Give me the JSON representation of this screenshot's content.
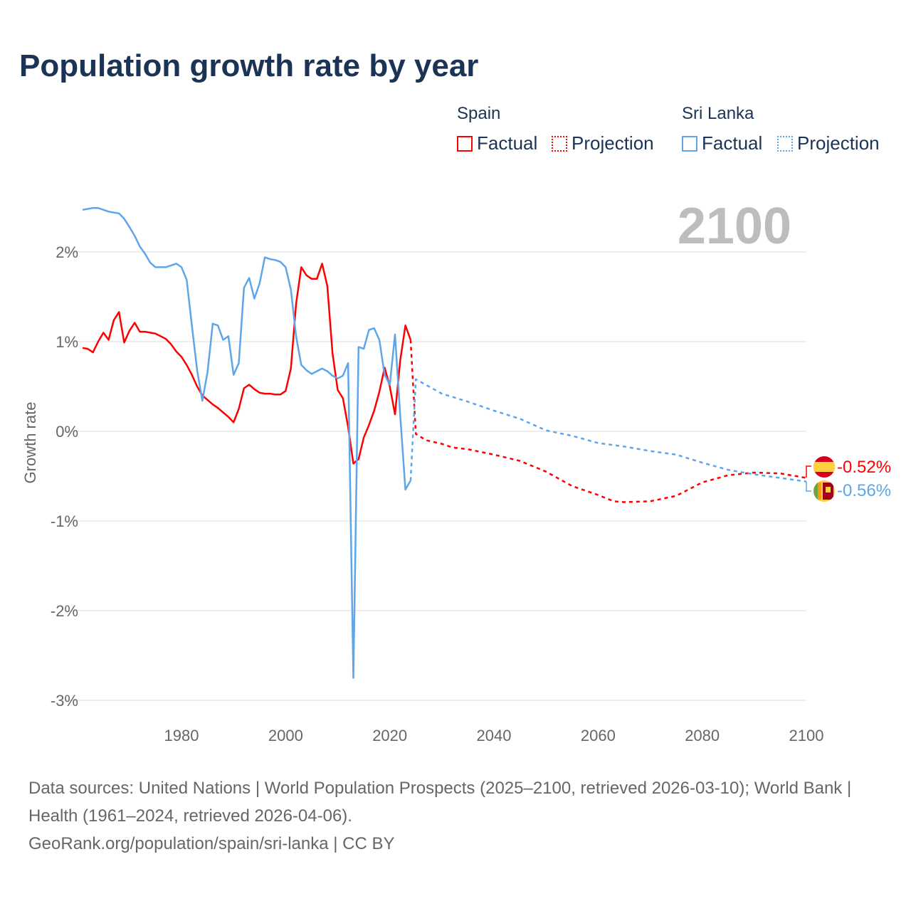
{
  "title": "Population growth rate by year",
  "legend": {
    "groups": [
      {
        "name": "Spain",
        "factual": "Factual",
        "projection": "Projection",
        "color": "#ff0000"
      },
      {
        "name": "Sri Lanka",
        "factual": "Factual",
        "projection": "Projection",
        "color": "#5ea6ea"
      }
    ]
  },
  "year_label": "2100",
  "end_labels": {
    "spain": "-0.52%",
    "sri_lanka": "-0.56%"
  },
  "source": {
    "line1": "Data sources: United Nations | World Population Prospects (2025–2100, retrieved 2026-03-10); World Bank | Health (1961–2024, retrieved 2026-04-06).",
    "line2": "GeoRank.org/population/spain/sri-lanka | CC BY"
  },
  "chart_data": {
    "type": "line",
    "title": "Population growth rate by year",
    "xlabel": "",
    "ylabel": "Growth rate",
    "xlim": [
      1961,
      2100
    ],
    "ylim": [
      -3.2,
      2.5
    ],
    "xticks": [
      1980,
      2000,
      2020,
      2040,
      2060,
      2080,
      2100
    ],
    "xtick_labels": [
      "1980",
      "2000",
      "2020",
      "2040",
      "2060",
      "2080",
      "2100"
    ],
    "yticks": [
      2,
      1,
      0,
      -1,
      -2,
      -3
    ],
    "ytick_labels": [
      "2%",
      "1%",
      "0%",
      "-1%",
      "-2%",
      "-3%"
    ],
    "grid": true,
    "legend_position": "top-right",
    "series": [
      {
        "name": "Spain Factual",
        "color": "#ff0000",
        "style": "solid",
        "x": [
          1961,
          1962,
          1963,
          1964,
          1965,
          1966,
          1967,
          1968,
          1969,
          1970,
          1971,
          1972,
          1973,
          1974,
          1975,
          1976,
          1977,
          1978,
          1979,
          1980,
          1981,
          1982,
          1983,
          1984,
          1985,
          1986,
          1987,
          1988,
          1989,
          1990,
          1991,
          1992,
          1993,
          1994,
          1995,
          1996,
          1997,
          1998,
          1999,
          2000,
          2001,
          2002,
          2003,
          2004,
          2005,
          2006,
          2007,
          2008,
          2009,
          2010,
          2011,
          2012,
          2013,
          2014,
          2015,
          2016,
          2017,
          2018,
          2019,
          2020,
          2021,
          2022,
          2023,
          2024
        ],
        "values": [
          0.93,
          0.92,
          0.88,
          1.0,
          1.1,
          1.02,
          1.24,
          1.33,
          0.99,
          1.12,
          1.21,
          1.11,
          1.11,
          1.1,
          1.09,
          1.06,
          1.03,
          0.97,
          0.89,
          0.83,
          0.74,
          0.63,
          0.5,
          0.4,
          0.35,
          0.3,
          0.26,
          0.21,
          0.16,
          0.1,
          0.25,
          0.48,
          0.52,
          0.47,
          0.43,
          0.42,
          0.42,
          0.41,
          0.41,
          0.45,
          0.7,
          1.42,
          1.83,
          1.74,
          1.7,
          1.7,
          1.87,
          1.62,
          0.87,
          0.46,
          0.37,
          0.05,
          -0.36,
          -0.31,
          -0.07,
          0.07,
          0.23,
          0.44,
          0.71,
          0.5,
          0.19,
          0.79,
          1.18,
          1.02
        ]
      },
      {
        "name": "Spain Projection",
        "color": "#ff0000",
        "style": "dotted",
        "x": [
          2024,
          2025,
          2027,
          2030,
          2032,
          2035,
          2040,
          2045,
          2050,
          2055,
          2060,
          2063,
          2065,
          2070,
          2075,
          2080,
          2085,
          2090,
          2095,
          2100
        ],
        "values": [
          1.02,
          -0.03,
          -0.1,
          -0.14,
          -0.18,
          -0.2,
          -0.26,
          -0.33,
          -0.45,
          -0.61,
          -0.71,
          -0.78,
          -0.79,
          -0.78,
          -0.72,
          -0.57,
          -0.49,
          -0.46,
          -0.47,
          -0.52
        ]
      },
      {
        "name": "Sri Lanka Factual",
        "color": "#5ea6ea",
        "style": "solid",
        "x": [
          1961,
          1962,
          1963,
          1964,
          1965,
          1966,
          1967,
          1968,
          1969,
          1970,
          1971,
          1972,
          1973,
          1974,
          1975,
          1976,
          1977,
          1978,
          1979,
          1980,
          1981,
          1982,
          1983,
          1984,
          1985,
          1986,
          1987,
          1988,
          1989,
          1990,
          1991,
          1992,
          1993,
          1994,
          1995,
          1996,
          1997,
          1998,
          1999,
          2000,
          2001,
          2002,
          2003,
          2004,
          2005,
          2006,
          2007,
          2008,
          2009,
          2010,
          2011,
          2012,
          2013,
          2014,
          2015,
          2016,
          2017,
          2018,
          2019,
          2020,
          2021,
          2022,
          2023,
          2024
        ],
        "values": [
          2.47,
          2.48,
          2.49,
          2.49,
          2.47,
          2.45,
          2.44,
          2.43,
          2.37,
          2.28,
          2.18,
          2.06,
          1.98,
          1.88,
          1.83,
          1.83,
          1.83,
          1.85,
          1.87,
          1.83,
          1.69,
          1.18,
          0.68,
          0.34,
          0.66,
          1.2,
          1.18,
          1.02,
          1.06,
          0.63,
          0.76,
          1.6,
          1.71,
          1.48,
          1.65,
          1.94,
          1.92,
          1.91,
          1.89,
          1.83,
          1.58,
          1.06,
          0.74,
          0.68,
          0.64,
          0.67,
          0.7,
          0.67,
          0.62,
          0.59,
          0.62,
          0.76,
          -2.75,
          0.94,
          0.92,
          1.13,
          1.15,
          1.02,
          0.63,
          0.52,
          1.08,
          0.18,
          -0.65,
          -0.55
        ]
      },
      {
        "name": "Sri Lanka Projection",
        "color": "#5ea6ea",
        "style": "dotted",
        "x": [
          2024,
          2025,
          2030,
          2035,
          2040,
          2045,
          2050,
          2055,
          2060,
          2065,
          2070,
          2075,
          2080,
          2085,
          2090,
          2095,
          2100
        ],
        "values": [
          -0.55,
          0.58,
          0.42,
          0.33,
          0.23,
          0.14,
          0.01,
          -0.05,
          -0.13,
          -0.17,
          -0.22,
          -0.26,
          -0.35,
          -0.43,
          -0.48,
          -0.52,
          -0.56
        ]
      }
    ]
  }
}
